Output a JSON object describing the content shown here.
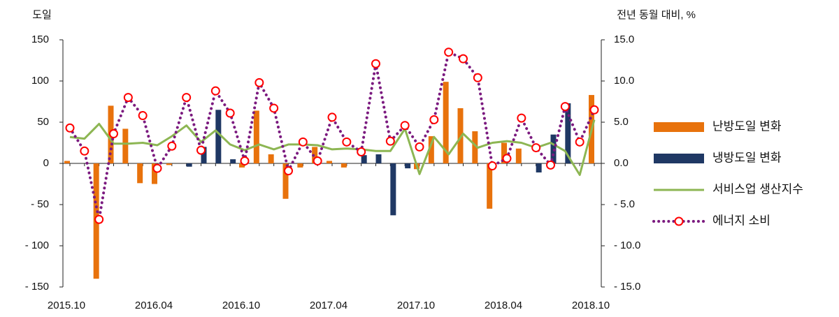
{
  "chart_data": {
    "type": "combo",
    "y_label": "도일",
    "y2_label": "전년 동월 대비, %",
    "categories": [
      "2015.10",
      null,
      null,
      null,
      null,
      null,
      "2016.04",
      null,
      null,
      null,
      null,
      null,
      "2016.10",
      null,
      null,
      null,
      null,
      null,
      "2017.04",
      null,
      null,
      null,
      null,
      null,
      "2017.10",
      null,
      null,
      null,
      null,
      null,
      "2018.04",
      null,
      null,
      null,
      null,
      null,
      "2018.10"
    ],
    "ylim": [
      -150,
      150
    ],
    "yticks": [
      {
        "value": -150,
        "label": "- 150"
      },
      {
        "value": -100,
        "label": "- 100"
      },
      {
        "value": -50,
        "label": "- 50"
      },
      0,
      50,
      100,
      150
    ],
    "y2lim": [
      -15,
      15
    ],
    "y2ticks": [
      {
        "value": -15,
        "label": "- 15.0"
      },
      {
        "value": -10,
        "label": "- 10.0"
      },
      {
        "value": -5,
        "label": "- 5.0"
      },
      {
        "value": 0,
        "label": "0.0"
      },
      {
        "value": 5,
        "label": "5.0"
      },
      {
        "value": 10,
        "label": "10.0"
      },
      {
        "value": 15,
        "label": "15.0"
      }
    ],
    "legend": "right",
    "series": [
      {
        "name": "난방도일 변화",
        "type": "bar",
        "color": "#e8720c",
        "values": [
          3,
          0,
          -140,
          70,
          42,
          -24,
          -25,
          -2,
          0,
          0,
          0,
          0,
          -5,
          64,
          11,
          -43,
          -5,
          20,
          3,
          -5,
          0,
          0,
          0,
          0,
          -7,
          33,
          99,
          67,
          39,
          -55,
          25,
          18,
          0,
          0,
          0,
          0,
          83
        ]
      },
      {
        "name": "냉방도일 변화",
        "type": "bar",
        "color": "#1f3864",
        "values": [
          0,
          0,
          0,
          0,
          0,
          0,
          0,
          0,
          -4,
          20,
          65,
          5,
          0,
          0,
          0,
          0,
          0,
          0,
          0,
          0,
          10,
          11,
          -63,
          -6,
          0,
          0,
          0,
          0,
          0,
          0,
          0,
          0,
          -11,
          35,
          73,
          0,
          0
        ]
      },
      {
        "name": "서비스업 생산지수",
        "type": "line",
        "axis": "y2",
        "color": "#8db653",
        "values": [
          3.2,
          3.0,
          4.8,
          2.4,
          2.4,
          2.5,
          2.2,
          3.3,
          4.6,
          2.6,
          4.0,
          2.3,
          1.6,
          2.3,
          1.7,
          2.3,
          2.3,
          2.2,
          1.7,
          1.8,
          1.7,
          1.5,
          1.5,
          4.2,
          -1.3,
          3.2,
          1.1,
          3.6,
          1.9,
          2.5,
          2.7,
          2.5,
          1.9,
          2.5,
          1.5,
          -1.4,
          5.3
        ]
      },
      {
        "name": "에너지 소비",
        "type": "line",
        "axis": "y2",
        "color": "#7b1a7f",
        "dotted": true,
        "marker": "circle",
        "marker_color": "#ff0000",
        "values": [
          4.3,
          1.5,
          -6.8,
          3.6,
          8.0,
          5.8,
          -0.6,
          2.1,
          8.0,
          1.6,
          8.8,
          6.1,
          0.3,
          9.8,
          6.7,
          -0.9,
          2.6,
          0.3,
          5.6,
          2.6,
          1.4,
          12.1,
          2.7,
          4.6,
          2.0,
          5.3,
          13.5,
          12.7,
          10.4,
          -0.3,
          0.6,
          5.5,
          1.9,
          -0.2,
          6.9,
          2.6,
          6.5
        ]
      }
    ]
  }
}
